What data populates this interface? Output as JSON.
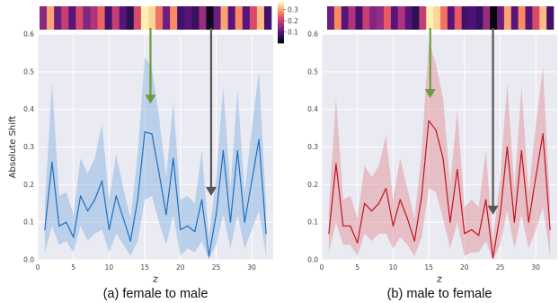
{
  "chart_data": [
    {
      "type": "line",
      "caption": "(a) female to male",
      "xlabel": "z",
      "ylabel": "Absolute Shift",
      "xlim": [
        0,
        33
      ],
      "ylim": [
        0,
        0.6
      ],
      "xticks": [
        0,
        5,
        10,
        15,
        20,
        25,
        30
      ],
      "yticks": [
        0.0,
        0.1,
        0.2,
        0.3,
        0.4,
        0.5,
        0.6
      ],
      "grid": true,
      "line_color": "#1f6fbf",
      "band_color": "#7fb0e0",
      "x": [
        1,
        2,
        3,
        4,
        5,
        6,
        7,
        8,
        9,
        10,
        11,
        12,
        13,
        14,
        15,
        16,
        17,
        18,
        19,
        20,
        21,
        22,
        23,
        24,
        25,
        26,
        27,
        28,
        29,
        30,
        31,
        32
      ],
      "series": [
        {
          "mean": [
            0.08,
            0.26,
            0.09,
            0.1,
            0.06,
            0.17,
            0.13,
            0.16,
            0.21,
            0.08,
            0.17,
            0.11,
            0.05,
            0.16,
            0.34,
            0.335,
            0.23,
            0.12,
            0.27,
            0.08,
            0.09,
            0.075,
            0.16,
            0.01,
            0.12,
            0.29,
            0.1,
            0.29,
            0.1,
            0.21,
            0.32,
            0.07
          ],
          "lower": [
            0.02,
            0.09,
            0.04,
            0.05,
            0.02,
            0.09,
            0.05,
            0.07,
            0.08,
            0.02,
            0.07,
            0.04,
            0.01,
            0.05,
            0.16,
            0.17,
            0.1,
            0.04,
            0.12,
            0.01,
            0.03,
            0.02,
            0.05,
            0.0,
            0.04,
            0.12,
            0.03,
            0.12,
            0.03,
            0.08,
            0.13,
            0.01
          ],
          "upper": [
            0.15,
            0.47,
            0.17,
            0.18,
            0.12,
            0.27,
            0.23,
            0.27,
            0.36,
            0.16,
            0.28,
            0.19,
            0.11,
            0.28,
            0.54,
            0.51,
            0.38,
            0.22,
            0.42,
            0.16,
            0.17,
            0.15,
            0.29,
            0.06,
            0.22,
            0.46,
            0.19,
            0.45,
            0.18,
            0.35,
            0.5,
            0.14
          ]
        }
      ],
      "heatmap_values": [
        0.15,
        0.3,
        0.12,
        0.2,
        0.1,
        0.22,
        0.14,
        0.18,
        0.25,
        0.08,
        0.2,
        0.1,
        0.06,
        0.22,
        0.36,
        0.34,
        0.26,
        0.12,
        0.28,
        0.08,
        0.1,
        0.07,
        0.16,
        0.02,
        0.12,
        0.3,
        0.1,
        0.28,
        0.1,
        0.22,
        0.32,
        0.08
      ],
      "arrows": [
        {
          "x": 15.8,
          "y_tip": 0.415,
          "color": "#6e9a3a"
        },
        {
          "x": 24.3,
          "y_tip": 0.17,
          "color": "#555555"
        }
      ]
    },
    {
      "type": "line",
      "caption": "(b) male to female",
      "xlabel": "z",
      "ylabel": "",
      "xlim": [
        0,
        33
      ],
      "ylim": [
        0,
        0.6
      ],
      "xticks": [
        0,
        5,
        10,
        15,
        20,
        25,
        30
      ],
      "yticks": [
        0.0,
        0.1,
        0.2,
        0.3,
        0.4,
        0.5,
        0.6
      ],
      "grid": true,
      "line_color": "#c0141c",
      "band_color": "#e08a90",
      "x": [
        1,
        2,
        3,
        4,
        5,
        6,
        7,
        8,
        9,
        10,
        11,
        12,
        13,
        14,
        15,
        16,
        17,
        18,
        19,
        20,
        21,
        22,
        23,
        24,
        25,
        26,
        27,
        28,
        29,
        30,
        31,
        32
      ],
      "series": [
        {
          "mean": [
            0.07,
            0.255,
            0.09,
            0.09,
            0.045,
            0.15,
            0.13,
            0.15,
            0.19,
            0.09,
            0.16,
            0.11,
            0.05,
            0.17,
            0.37,
            0.345,
            0.27,
            0.1,
            0.24,
            0.07,
            0.08,
            0.065,
            0.16,
            0.005,
            0.12,
            0.3,
            0.1,
            0.29,
            0.1,
            0.22,
            0.335,
            0.08
          ],
          "lower": [
            0.02,
            0.1,
            0.04,
            0.04,
            0.01,
            0.07,
            0.05,
            0.07,
            0.07,
            0.03,
            0.06,
            0.04,
            0.01,
            0.06,
            0.19,
            0.18,
            0.11,
            0.03,
            0.1,
            0.01,
            0.02,
            0.02,
            0.05,
            0.0,
            0.04,
            0.13,
            0.03,
            0.12,
            0.03,
            0.08,
            0.14,
            0.01
          ],
          "upper": [
            0.14,
            0.43,
            0.16,
            0.17,
            0.11,
            0.25,
            0.22,
            0.25,
            0.33,
            0.16,
            0.27,
            0.19,
            0.11,
            0.29,
            0.58,
            0.52,
            0.43,
            0.2,
            0.4,
            0.14,
            0.16,
            0.14,
            0.29,
            0.05,
            0.22,
            0.47,
            0.19,
            0.46,
            0.18,
            0.36,
            0.51,
            0.15
          ]
        }
      ],
      "heatmap_values": [
        0.12,
        0.28,
        0.1,
        0.18,
        0.08,
        0.2,
        0.14,
        0.16,
        0.24,
        0.1,
        0.18,
        0.1,
        0.06,
        0.2,
        0.36,
        0.34,
        0.26,
        0.1,
        0.24,
        0.08,
        0.09,
        0.07,
        0.16,
        0.01,
        0.12,
        0.3,
        0.1,
        0.28,
        0.1,
        0.22,
        0.32,
        0.08
      ],
      "arrows": [
        {
          "x": 15.2,
          "y_tip": 0.43,
          "color": "#6e9a3a"
        },
        {
          "x": 24.0,
          "y_tip": 0.12,
          "color": "#555555"
        }
      ]
    }
  ],
  "colorbar": {
    "ticks": [
      0.1,
      0.2,
      0.3
    ],
    "range": [
      0.0,
      0.37
    ]
  }
}
